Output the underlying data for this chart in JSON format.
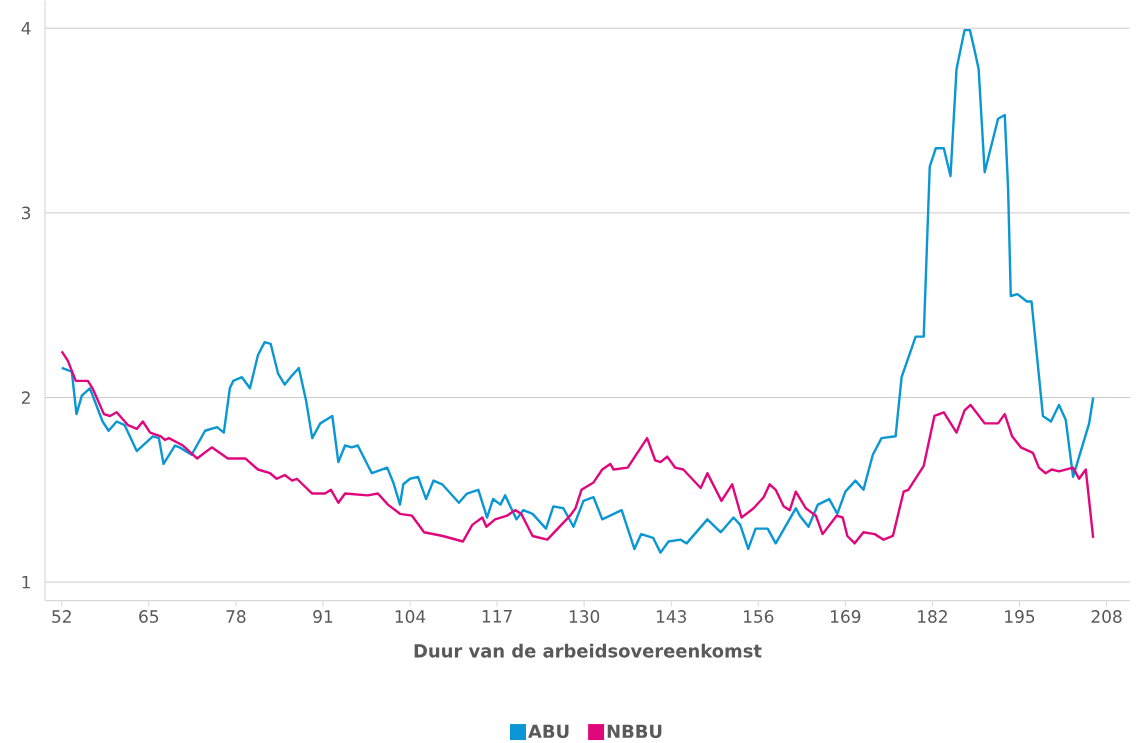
{
  "chart_data": {
    "type": "line",
    "xlabel": "Duur van de arbeidsovereenkomst",
    "xlim": [
      49.5,
      211.5
    ],
    "ylim": [
      0.9,
      4.15
    ],
    "xticks": [
      52,
      65,
      78,
      91,
      104,
      117,
      130,
      143,
      156,
      169,
      182,
      195,
      208
    ],
    "yticks": [
      1,
      2,
      3,
      4
    ],
    "grid": "y",
    "legend": "bottom",
    "marker": "none",
    "line_style": "solid",
    "series": [
      {
        "name": "ABU",
        "color": "#0a97d4",
        "x": [
          52.0,
          53.5,
          54.2,
          55.0,
          56.2,
          58.1,
          59.0,
          60.2,
          61.4,
          63.2,
          65.6,
          66.5,
          67.2,
          68.9,
          69.6,
          71.4,
          73.4,
          75.2,
          76.2,
          77.1,
          77.6,
          78.9,
          80.1,
          81.3,
          82.3,
          83.2,
          84.3,
          85.3,
          86.4,
          87.4,
          88.5,
          89.4,
          90.6,
          92.4,
          93.3,
          94.3,
          95.3,
          96.2,
          98.3,
          100.6,
          101.5,
          102.5,
          103.0,
          104.0,
          105.2,
          106.4,
          107.5,
          108.8,
          111.3,
          112.5,
          114.2,
          115.5,
          116.4,
          117.5,
          118.2,
          119.9,
          120.9,
          122.3,
          124.3,
          125.4,
          126.9,
          128.4,
          129.9,
          131.4,
          132.7,
          135.6,
          137.5,
          138.5,
          140.3,
          141.4,
          142.6,
          144.4,
          145.3,
          148.4,
          150.4,
          152.3,
          153.3,
          154.5,
          155.6,
          157.4,
          158.6,
          161.6,
          162.2,
          163.5,
          164.9,
          166.6,
          167.8,
          169.0,
          170.5,
          171.7,
          173.1,
          174.4,
          176.5,
          177.4,
          179.5,
          180.7,
          181.6,
          182.5,
          183.7,
          184.7,
          185.6,
          186.8,
          187.6,
          188.3,
          188.9,
          189.8,
          191.8,
          192.8,
          193.3,
          193.7,
          194.7,
          196.1,
          196.8,
          198.5,
          199.7,
          200.9,
          201.9,
          203.0,
          205.4,
          206.0
        ],
        "values": [
          2.16,
          2.14,
          1.91,
          2.01,
          2.05,
          1.87,
          1.82,
          1.87,
          1.85,
          1.71,
          1.79,
          1.78,
          1.64,
          1.74,
          1.73,
          1.69,
          1.82,
          1.84,
          1.81,
          2.05,
          2.09,
          2.11,
          2.05,
          2.23,
          2.3,
          2.29,
          2.13,
          2.07,
          2.12,
          2.16,
          1.98,
          1.78,
          1.86,
          1.9,
          1.65,
          1.74,
          1.73,
          1.74,
          1.59,
          1.62,
          1.54,
          1.42,
          1.53,
          1.56,
          1.57,
          1.45,
          1.55,
          1.53,
          1.43,
          1.48,
          1.5,
          1.35,
          1.45,
          1.42,
          1.47,
          1.34,
          1.39,
          1.37,
          1.29,
          1.41,
          1.4,
          1.3,
          1.44,
          1.46,
          1.34,
          1.39,
          1.18,
          1.26,
          1.24,
          1.16,
          1.22,
          1.23,
          1.21,
          1.34,
          1.27,
          1.35,
          1.31,
          1.18,
          1.29,
          1.29,
          1.21,
          1.4,
          1.36,
          1.3,
          1.42,
          1.45,
          1.37,
          1.49,
          1.55,
          1.5,
          1.69,
          1.78,
          1.79,
          2.11,
          2.33,
          2.33,
          3.25,
          3.35,
          3.35,
          3.2,
          3.78,
          3.99,
          3.99,
          3.88,
          3.78,
          3.22,
          3.51,
          3.53,
          3.13,
          2.55,
          2.56,
          2.52,
          2.52,
          1.9,
          1.87,
          1.96,
          1.88,
          1.57,
          1.86,
          2.0
        ]
      },
      {
        "name": "NBBU",
        "color": "#e0077d",
        "x": [
          52.0,
          52.9,
          54.1,
          55.9,
          56.6,
          58.3,
          59.2,
          60.2,
          61.9,
          63.2,
          64.1,
          65.2,
          66.8,
          67.4,
          68.0,
          70.1,
          72.2,
          74.4,
          76.8,
          79.4,
          81.3,
          83.1,
          84.1,
          85.3,
          86.4,
          87.1,
          89.4,
          91.3,
          92.2,
          93.3,
          94.3,
          97.7,
          99.2,
          100.7,
          102.5,
          104.3,
          106.1,
          108.9,
          111.9,
          113.3,
          114.8,
          115.4,
          116.7,
          118.5,
          119.7,
          120.6,
          122.3,
          124.5,
          127.9,
          128.7,
          129.6,
          131.4,
          132.7,
          133.9,
          134.4,
          136.5,
          139.4,
          140.6,
          141.4,
          142.4,
          143.6,
          144.8,
          147.4,
          148.4,
          150.5,
          152.1,
          153.5,
          155.3,
          156.8,
          157.7,
          158.6,
          159.8,
          160.7,
          161.6,
          163.1,
          164.6,
          165.6,
          167.7,
          168.6,
          169.3,
          170.4,
          171.7,
          173.4,
          174.7,
          176.1,
          177.7,
          178.4,
          180.7,
          182.3,
          183.7,
          185.6,
          186.8,
          187.7,
          189.8,
          191.8,
          192.8,
          193.9,
          195.2,
          197.0,
          197.9,
          198.9,
          199.8,
          200.9,
          203.0,
          203.9,
          204.9,
          206.0
        ],
        "values": [
          2.25,
          2.2,
          2.09,
          2.09,
          2.05,
          1.91,
          1.9,
          1.92,
          1.85,
          1.83,
          1.87,
          1.81,
          1.79,
          1.77,
          1.78,
          1.74,
          1.67,
          1.73,
          1.67,
          1.67,
          1.61,
          1.59,
          1.56,
          1.58,
          1.55,
          1.56,
          1.48,
          1.48,
          1.5,
          1.43,
          1.48,
          1.47,
          1.48,
          1.42,
          1.37,
          1.36,
          1.27,
          1.25,
          1.22,
          1.31,
          1.35,
          1.3,
          1.34,
          1.36,
          1.39,
          1.37,
          1.25,
          1.23,
          1.36,
          1.4,
          1.5,
          1.54,
          1.61,
          1.64,
          1.61,
          1.62,
          1.78,
          1.66,
          1.65,
          1.68,
          1.62,
          1.61,
          1.51,
          1.59,
          1.44,
          1.53,
          1.35,
          1.4,
          1.46,
          1.53,
          1.5,
          1.41,
          1.39,
          1.49,
          1.4,
          1.36,
          1.26,
          1.36,
          1.35,
          1.25,
          1.21,
          1.27,
          1.26,
          1.23,
          1.25,
          1.49,
          1.5,
          1.63,
          1.9,
          1.92,
          1.81,
          1.93,
          1.96,
          1.86,
          1.86,
          1.91,
          1.79,
          1.73,
          1.7,
          1.62,
          1.59,
          1.61,
          1.6,
          1.62,
          1.56,
          1.61,
          1.24
        ]
      }
    ]
  }
}
